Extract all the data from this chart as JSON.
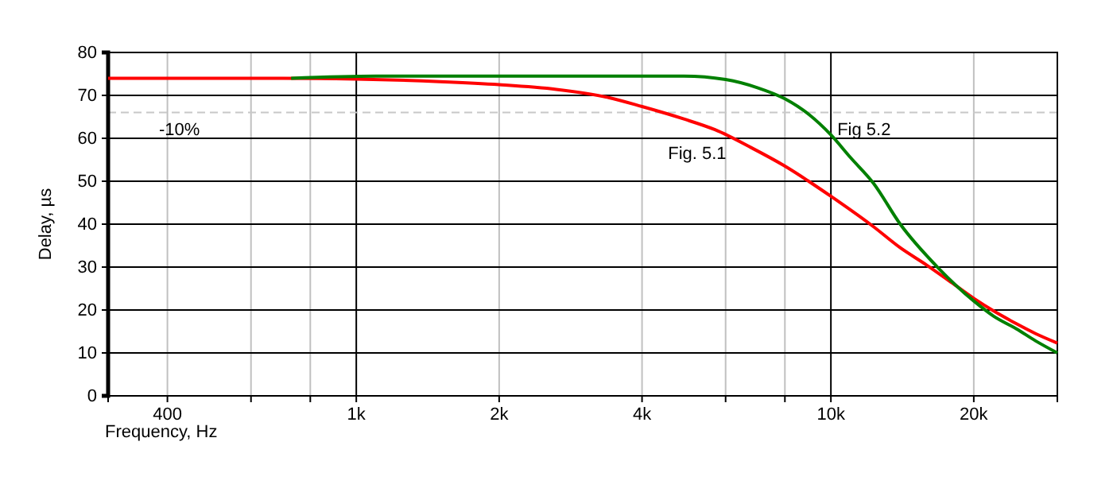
{
  "chart_data": {
    "type": "line",
    "xlabel": "Frequency, Hz",
    "ylabel": "Delay, µs",
    "log": "x",
    "grid": true,
    "legend": false,
    "marker": "none",
    "line_style": "solid",
    "xlim": [
      300,
      30000
    ],
    "xticks": [
      {
        "value": 400,
        "label": "400"
      },
      {
        "value": 600,
        "label": null
      },
      {
        "value": 800,
        "label": null
      },
      {
        "value": 1000,
        "label": "1k"
      },
      {
        "value": 2000,
        "label": "2k"
      },
      {
        "value": 4000,
        "label": "4k"
      },
      {
        "value": 6000,
        "label": null
      },
      {
        "value": 8000,
        "label": null
      },
      {
        "value": 10000,
        "label": "10k"
      },
      {
        "value": 20000,
        "label": "20k"
      }
    ],
    "ylim": [
      0,
      80
    ],
    "yticks": [
      0,
      10,
      20,
      30,
      40,
      50,
      60,
      70,
      80
    ],
    "ref_lines": [
      {
        "axis": "y",
        "value": 66,
        "color": "#c8c8c8",
        "line_style": "dashed"
      }
    ],
    "annotations": [
      "-10%"
    ],
    "series": [
      {
        "name": "Fig. 5.1",
        "color": "#ff0000",
        "x": [
          300,
          700,
          1000,
          1500,
          2000,
          2640,
          3400,
          4000,
          4900,
          5700,
          6800,
          7950,
          10000,
          12300,
          14000,
          15900,
          18000,
          20000,
          22000,
          24600,
          27000,
          30000
        ],
        "values": [
          74,
          74,
          73.8,
          73.2,
          72.5,
          71.4,
          69.5,
          67.4,
          64.5,
          62,
          57.8,
          53.7,
          46.5,
          39.4,
          34.5,
          30.5,
          26.3,
          22.7,
          19.8,
          16.8,
          14.5,
          12.3
        ]
      },
      {
        "name": "Fig 5.2",
        "color": "#008000",
        "x": [
          729,
          1100,
          2000,
          3400,
          4900,
          6000,
          7000,
          8000,
          9000,
          10000,
          11000,
          12300,
          14000,
          16800,
          20000,
          22000,
          24600,
          27000,
          30000
        ],
        "values": [
          74,
          74.5,
          74.5,
          74.5,
          74.5,
          73.7,
          71.8,
          69.2,
          65.5,
          60.8,
          55.5,
          49.5,
          40,
          29.9,
          22.1,
          18.6,
          15.6,
          12.8,
          10
        ]
      }
    ]
  }
}
